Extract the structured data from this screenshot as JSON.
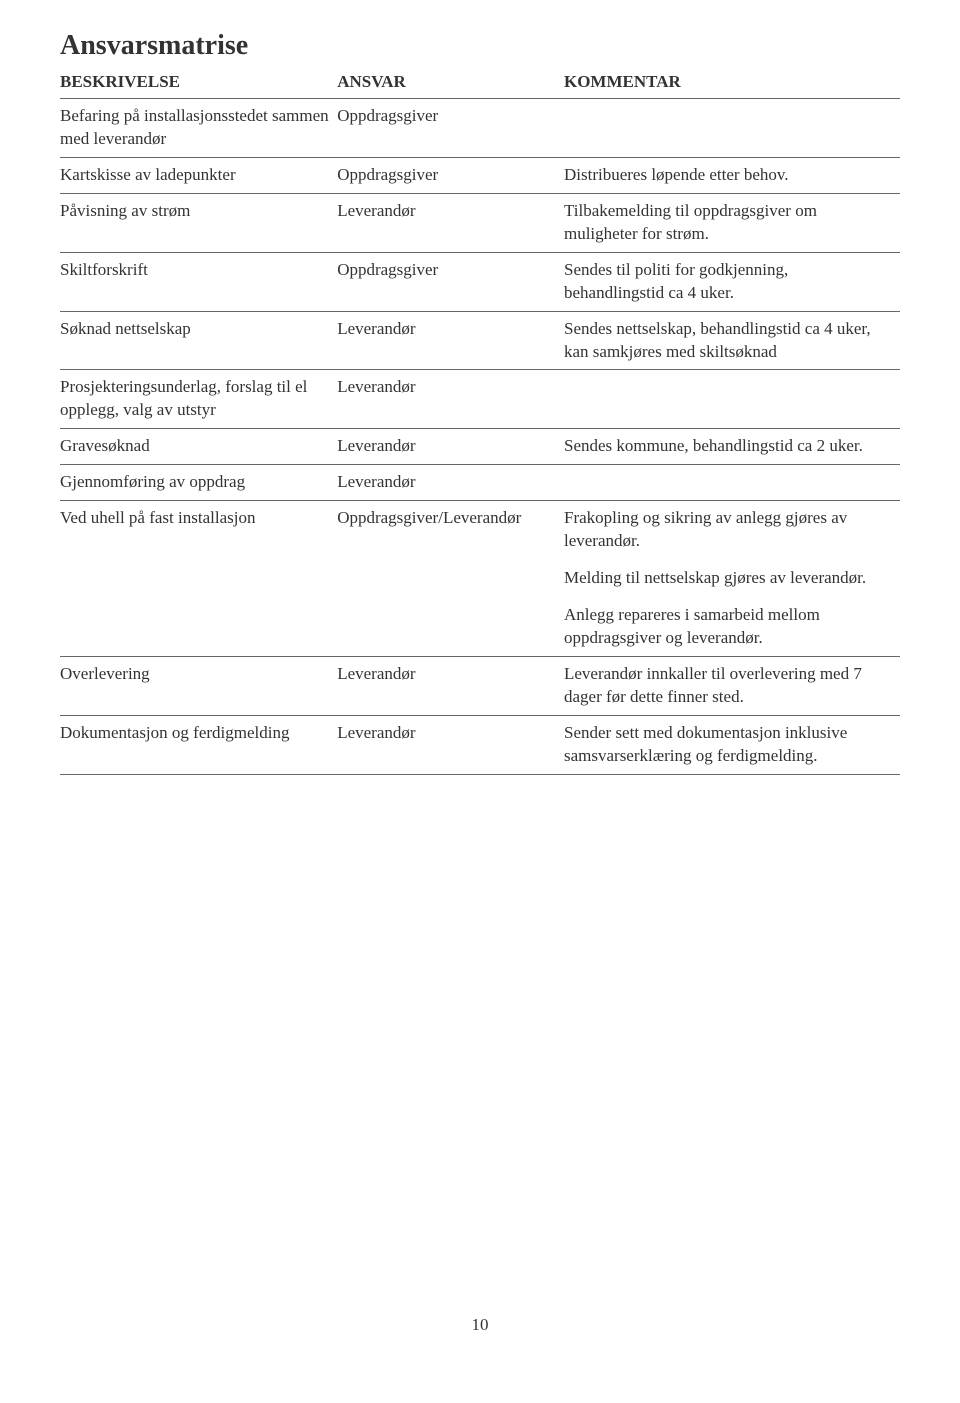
{
  "title": "Ansvarsmatrise",
  "headers": {
    "beskrivelse": "BESKRIVELSE",
    "ansvar": "ANSVAR",
    "kommentar": "KOMMENTAR"
  },
  "rows": [
    {
      "beskrivelse": "Befaring på installasjonsstedet sammen med leverandør",
      "ansvar": "Oppdragsgiver",
      "kommentar": ""
    },
    {
      "beskrivelse": "Kartskisse av ladepunkter",
      "ansvar": "Oppdragsgiver",
      "kommentar": "Distribueres løpende etter behov."
    },
    {
      "beskrivelse": "Påvisning av strøm",
      "ansvar": "Leverandør",
      "kommentar": "Tilbakemelding til oppdragsgiver om muligheter for strøm."
    },
    {
      "beskrivelse": "Skiltforskrift",
      "ansvar": "Oppdragsgiver",
      "kommentar": "Sendes til politi for godkjenning, behandlingstid ca 4 uker."
    },
    {
      "beskrivelse": "Søknad nettselskap",
      "ansvar": "Leverandør",
      "kommentar": "Sendes nettselskap, behandlingstid ca 4 uker, kan samkjøres med skiltsøknad"
    },
    {
      "beskrivelse": "Prosjekteringsunderlag, forslag til el opplegg, valg av utstyr",
      "ansvar": "Leverandør",
      "kommentar": ""
    },
    {
      "beskrivelse": "Gravesøknad",
      "ansvar": "Leverandør",
      "kommentar": "Sendes kommune, behandlingstid ca 2 uker."
    },
    {
      "beskrivelse": "Gjennomføring av oppdrag",
      "ansvar": "Leverandør",
      "kommentar": ""
    },
    {
      "beskrivelse": "Ved uhell på fast installasjon",
      "ansvar": "Oppdragsgiver/Leverandør",
      "kommentar_multi": [
        "Frakopling og sikring av anlegg gjøres av leverandør.",
        "Melding til nettselskap gjøres av leverandør.",
        "Anlegg repareres i samarbeid mellom oppdragsgiver og leverandør."
      ]
    },
    {
      "beskrivelse": "Overlevering",
      "ansvar": "Leverandør",
      "kommentar": "Leverandør innkaller til overlevering med 7 dager før dette finner sted."
    },
    {
      "beskrivelse": "Dokumentasjon og ferdigmelding",
      "ansvar": "Leverandør",
      "kommentar": "Sender sett med dokumentasjon inklusive samsvarserklæring og ferdigmelding."
    }
  ],
  "page_number": "10"
}
